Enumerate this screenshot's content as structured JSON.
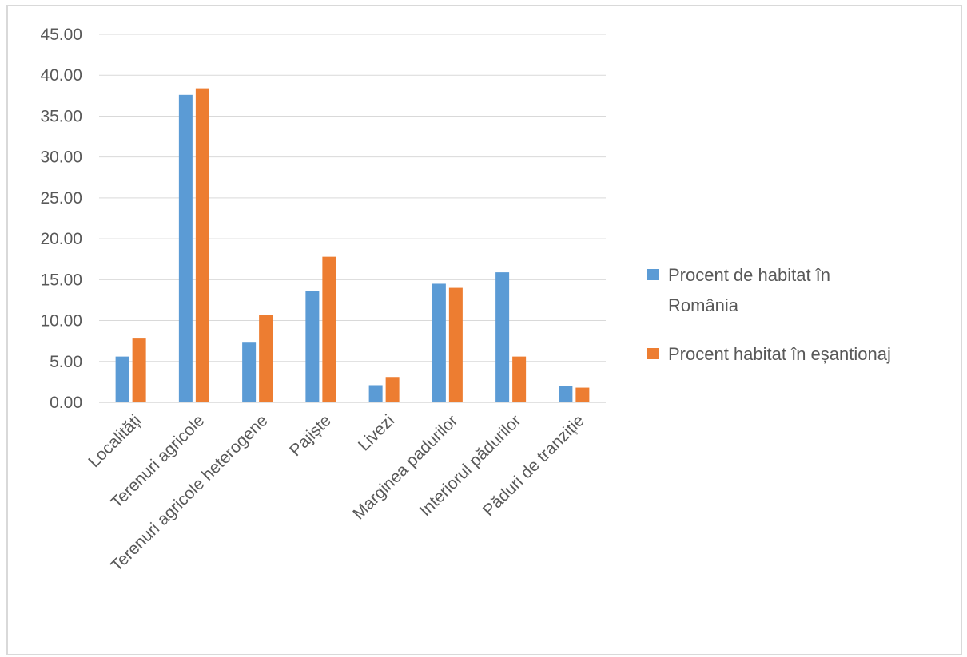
{
  "chart_data": {
    "type": "bar",
    "categories": [
      "Localități",
      "Terenuri agricole",
      "Terenuri agricole heterogene",
      "Pajiște",
      "Livezi",
      "Marginea padurilor",
      "Interiorul pădurilor",
      "Păduri de tranziție"
    ],
    "series": [
      {
        "name": "Procent de habitat în România",
        "name_lines": [
          "Procent de habitat în",
          "România"
        ],
        "color": "#5b9bd5",
        "values": [
          5.6,
          37.6,
          7.3,
          13.6,
          2.1,
          14.5,
          15.9,
          2.0
        ]
      },
      {
        "name": "Procent habitat în eșantionaj",
        "name_lines": [
          "Procent habitat în eșantionaj"
        ],
        "color": "#ed7d31",
        "values": [
          7.8,
          38.4,
          10.7,
          17.8,
          3.1,
          14.0,
          5.6,
          1.8
        ]
      }
    ],
    "yticks": [
      "0.00",
      "5.00",
      "10.00",
      "15.00",
      "20.00",
      "25.00",
      "30.00",
      "35.00",
      "40.00",
      "45.00"
    ],
    "ylim": [
      0,
      45
    ],
    "grid": true,
    "legend_position": "right",
    "title": "",
    "xlabel": "",
    "ylabel": ""
  }
}
